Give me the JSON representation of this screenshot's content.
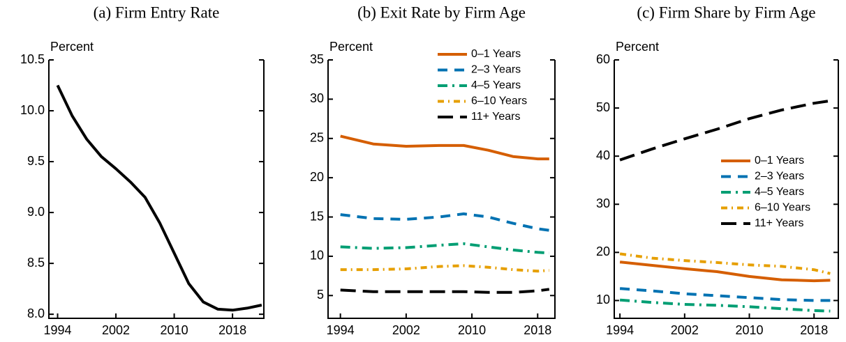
{
  "chart_data": [
    {
      "type": "line",
      "title": "(a) Firm Entry Rate",
      "ylabel": "Percent",
      "xlim": [
        1992.8,
        2022.3
      ],
      "xticks": [
        1994,
        2002,
        2010,
        2018
      ],
      "ylim": [
        7.96,
        10.5
      ],
      "yticks": [
        {
          "value": 8,
          "label": "8.0"
        },
        8.5,
        {
          "value": 9,
          "label": "9.0"
        },
        9.5,
        {
          "value": 10,
          "label": "10.0"
        },
        10.5
      ],
      "series": [
        {
          "color": "#000000",
          "dash": "solid",
          "x": [
            1994,
            1996,
            1998,
            2000,
            2002,
            2004,
            2006,
            2008,
            2010,
            2012,
            2014,
            2016,
            2018,
            2020,
            2022
          ],
          "values": [
            10.25,
            9.95,
            9.72,
            9.55,
            9.43,
            9.3,
            9.15,
            8.9,
            8.6,
            8.3,
            8.12,
            8.05,
            8.04,
            8.06,
            8.09
          ]
        }
      ]
    },
    {
      "type": "line",
      "title": "(b) Exit Rate by Firm Age",
      "ylabel": "Percent",
      "legend": "upper right",
      "xlim": [
        1992.5,
        2020.1
      ],
      "xticks": [
        1994,
        2002,
        2010,
        2018
      ],
      "ylim": [
        2.1,
        35
      ],
      "yticks": [
        5,
        10,
        15,
        20,
        25,
        30,
        35
      ],
      "x": [
        1994,
        1998,
        2002,
        2006,
        2009,
        2012,
        2015,
        2018,
        2019.4
      ],
      "series": [
        {
          "name": "0–1 Years",
          "color": "#d55e00",
          "dash": "solid",
          "values": [
            25.3,
            24.3,
            24.0,
            24.1,
            24.1,
            23.5,
            22.7,
            22.4,
            22.4
          ]
        },
        {
          "name": "2–3 Years",
          "color": "#0072b2",
          "dash": "dashed",
          "values": [
            15.3,
            14.8,
            14.7,
            15.0,
            15.4,
            15.0,
            14.2,
            13.5,
            13.3
          ]
        },
        {
          "name": "4–5 Years",
          "color": "#009e73",
          "dash": "dashdot",
          "values": [
            11.2,
            11.0,
            11.1,
            11.4,
            11.6,
            11.2,
            10.8,
            10.5,
            10.4
          ]
        },
        {
          "name": "6–10 Years",
          "color": "#e69f00",
          "dash": "dotdash",
          "values": [
            8.3,
            8.3,
            8.4,
            8.7,
            8.8,
            8.6,
            8.3,
            8.1,
            8.2
          ]
        },
        {
          "name": "11+ Years",
          "color": "#000000",
          "dash": "longdash",
          "values": [
            5.7,
            5.5,
            5.5,
            5.5,
            5.5,
            5.4,
            5.4,
            5.6,
            5.8
          ]
        }
      ]
    },
    {
      "type": "line",
      "title": "(c) Firm Share by Firm Age",
      "ylabel": "Percent",
      "legend": "center right",
      "xlim": [
        1993.3,
        2021
      ],
      "xticks": [
        1994,
        2002,
        2010,
        2018
      ],
      "ylim": [
        6.3,
        60
      ],
      "yticks": [
        10,
        20,
        30,
        40,
        50,
        60
      ],
      "x": [
        1994,
        1998,
        2002,
        2006,
        2010,
        2014,
        2018,
        2020
      ],
      "series": [
        {
          "name": "0–1 Years",
          "color": "#d55e00",
          "dash": "solid",
          "values": [
            18.0,
            17.3,
            16.6,
            16.0,
            15.0,
            14.3,
            14.1,
            14.2
          ]
        },
        {
          "name": "2–3 Years",
          "color": "#0072b2",
          "dash": "dashed",
          "values": [
            12.5,
            12.0,
            11.4,
            11.0,
            10.6,
            10.2,
            10.0,
            10.0
          ]
        },
        {
          "name": "4–5 Years",
          "color": "#009e73",
          "dash": "dashdot",
          "values": [
            10.1,
            9.6,
            9.2,
            9.0,
            8.7,
            8.3,
            7.9,
            7.8
          ]
        },
        {
          "name": "6–10 Years",
          "color": "#e69f00",
          "dash": "dotdash",
          "values": [
            19.7,
            18.8,
            18.3,
            17.9,
            17.4,
            17.1,
            16.4,
            15.6
          ]
        },
        {
          "name": "11+ Years",
          "color": "#000000",
          "dash": "longdash",
          "values": [
            39.2,
            41.5,
            43.6,
            45.6,
            47.8,
            49.6,
            51.0,
            51.5
          ]
        }
      ]
    }
  ]
}
